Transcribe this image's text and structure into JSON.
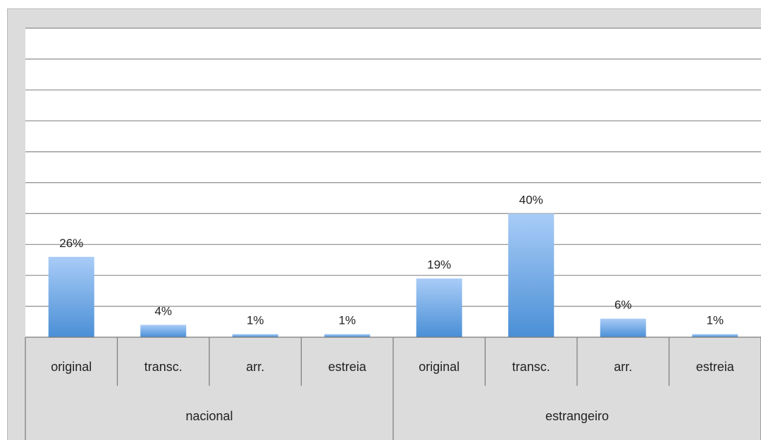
{
  "chart_data": {
    "type": "bar",
    "groups": [
      {
        "name": "nacional",
        "categories": [
          "original",
          "transc.",
          "arr.",
          "estreia"
        ]
      },
      {
        "name": "estrangeiro",
        "categories": [
          "original",
          "transc.",
          "arr.",
          "estreia"
        ]
      }
    ],
    "categories": [
      "original",
      "transc.",
      "arr.",
      "estreia",
      "original",
      "transc.",
      "arr.",
      "estreia"
    ],
    "values": [
      26,
      4,
      1,
      1,
      19,
      40,
      6,
      1
    ],
    "value_labels": [
      "26%",
      "4%",
      "1%",
      "1%",
      "19%",
      "40%",
      "6%",
      "1%"
    ],
    "ylim": [
      0,
      100
    ],
    "grid": true,
    "bar_color": "#5b9bd5",
    "bar_gradient_top": "#a9ccf7",
    "bar_gradient_bottom": "#4a8fd6"
  }
}
